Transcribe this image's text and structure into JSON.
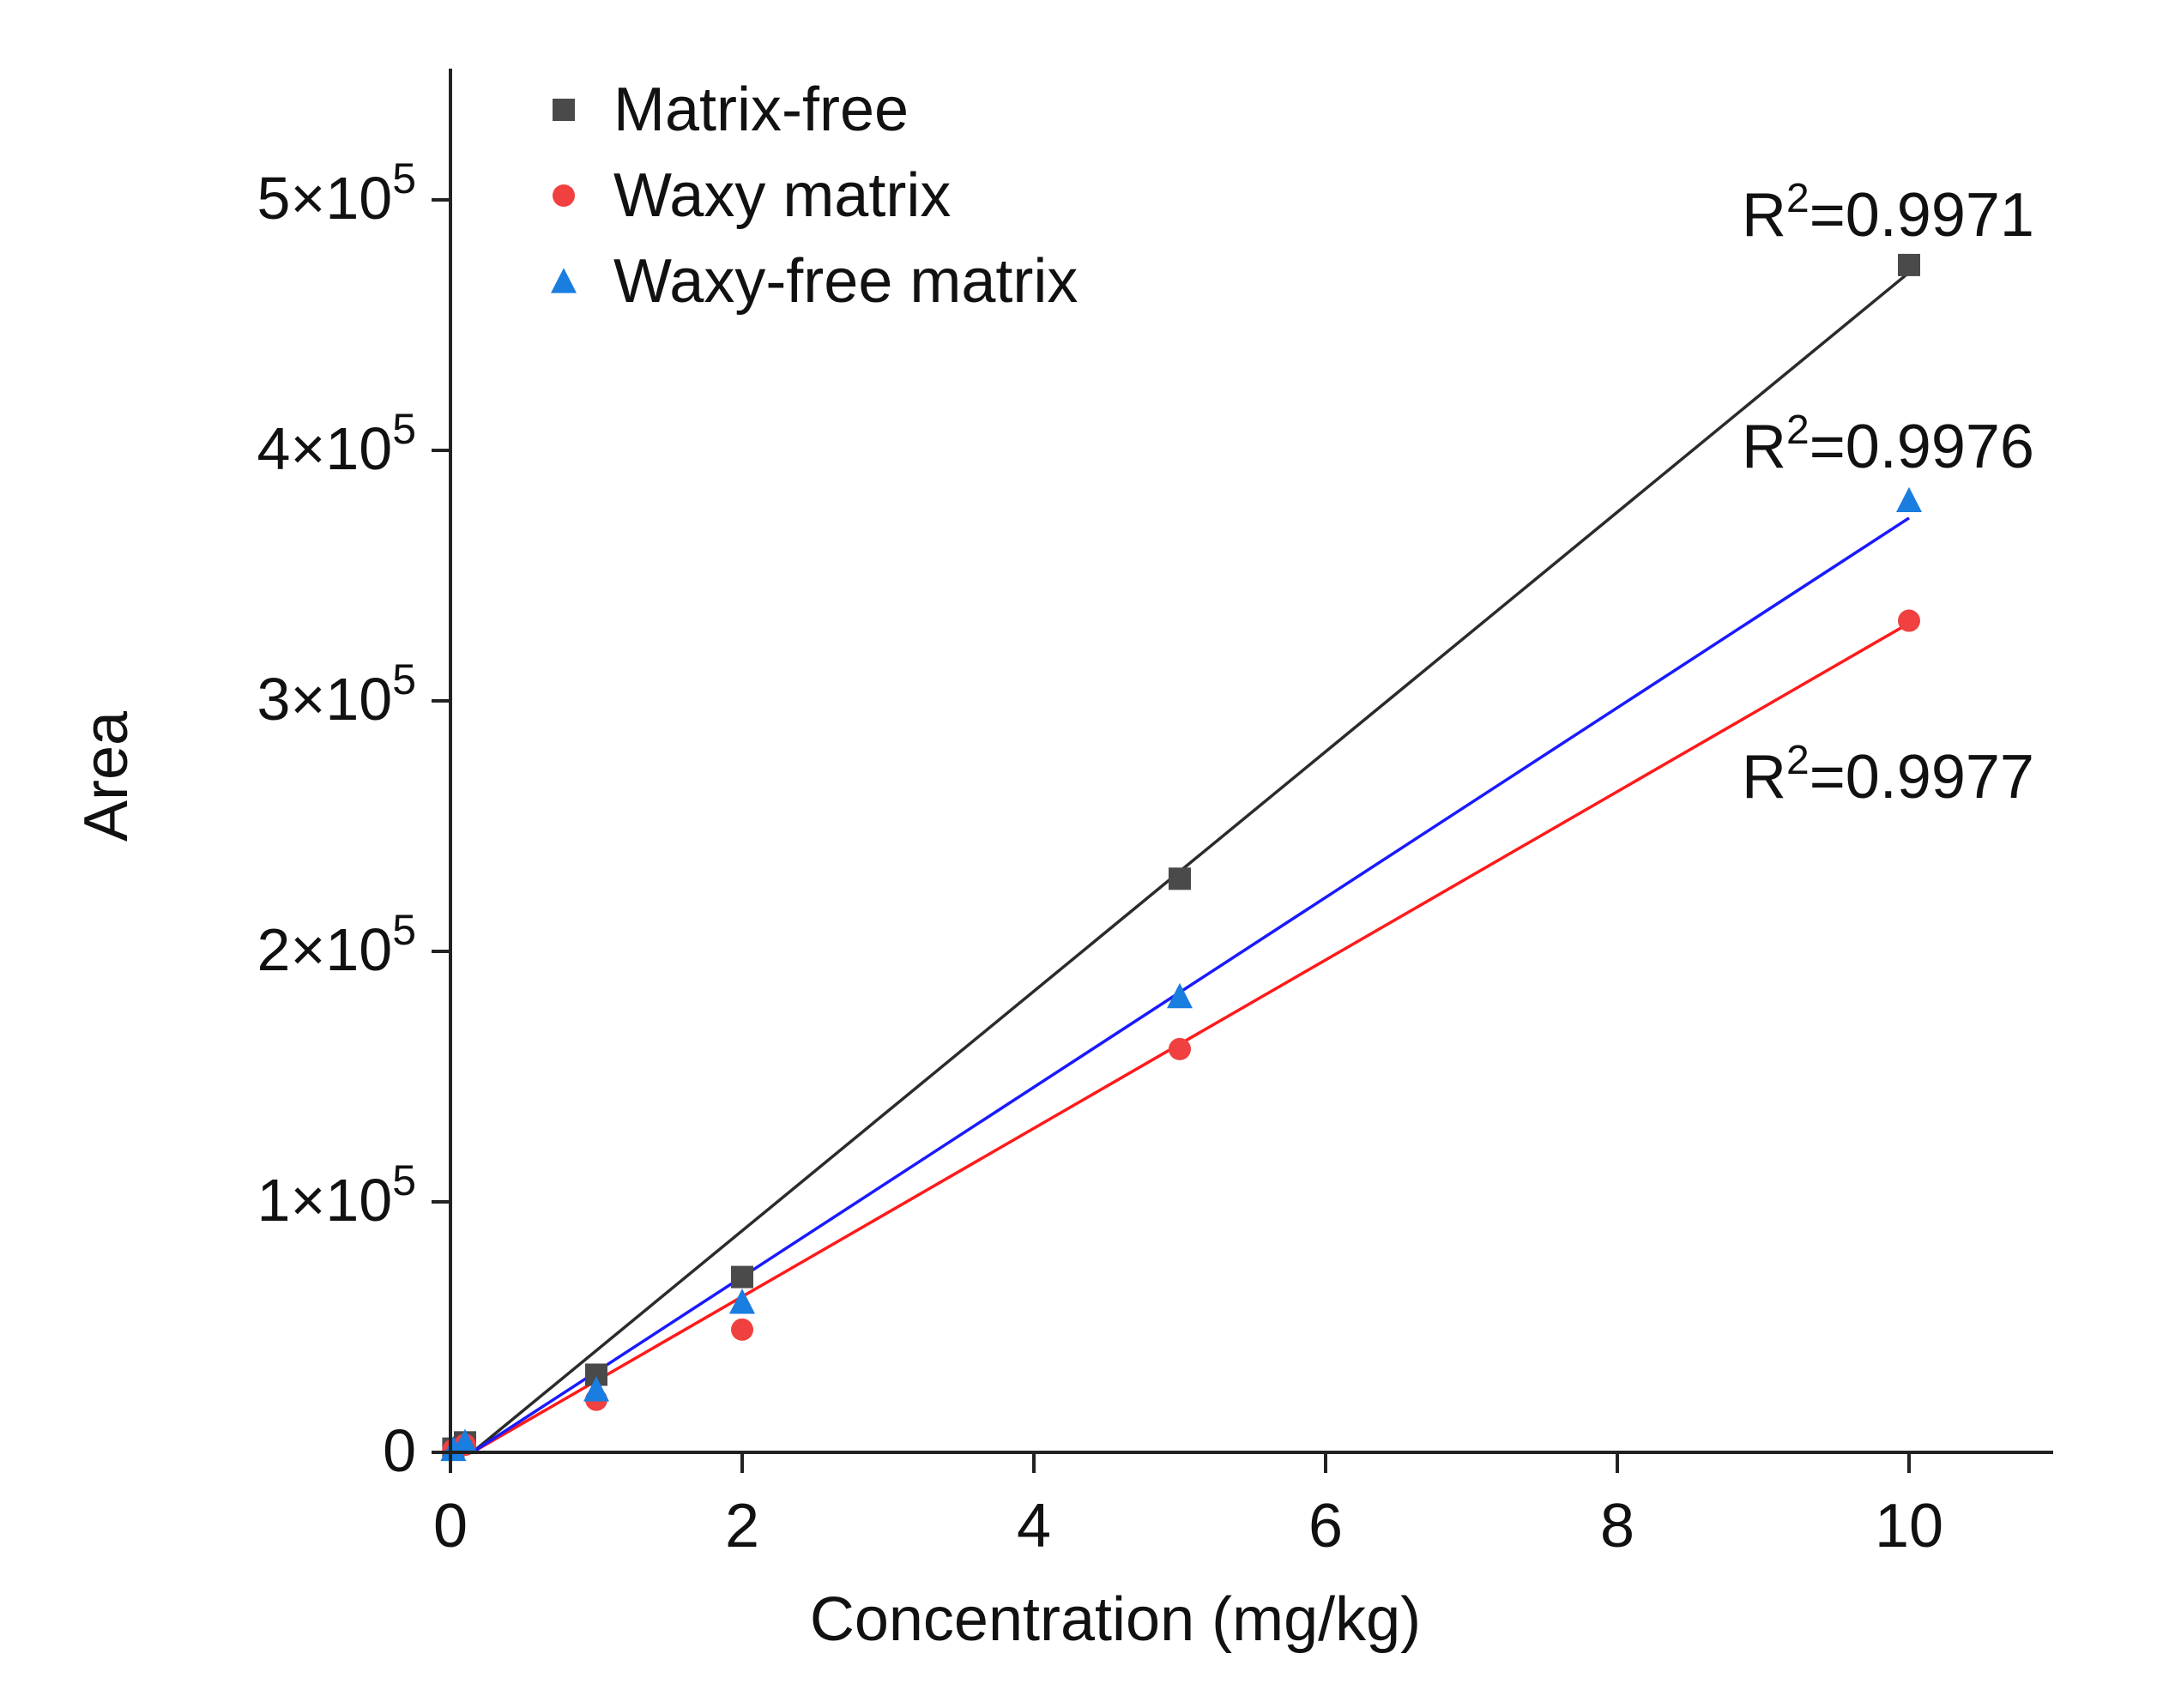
{
  "chart_data": {
    "type": "scatter",
    "title": "",
    "xlabel": "Concentration (mg/kg)",
    "ylabel": "Area",
    "xlim": [
      0,
      11
    ],
    "ylim": [
      0,
      550000
    ],
    "x_ticks": [
      0,
      2,
      4,
      6,
      8,
      10
    ],
    "x_tick_labels": [
      "0",
      "2",
      "4",
      "6",
      "8",
      "10"
    ],
    "y_ticks": [
      0,
      100000,
      200000,
      300000,
      400000,
      500000
    ],
    "y_tick_labels": [
      {
        "mantissa": "0",
        "exponent": ""
      },
      {
        "mantissa": "1×10",
        "exponent": "5"
      },
      {
        "mantissa": "2×10",
        "exponent": "5"
      },
      {
        "mantissa": "3×10",
        "exponent": "5"
      },
      {
        "mantissa": "4×10",
        "exponent": "5"
      },
      {
        "mantissa": "5×10",
        "exponent": "5"
      }
    ],
    "legend_position": "top-left",
    "series": [
      {
        "name": "Matrix-free",
        "marker": "square",
        "color": "#4a4a4a",
        "line_color": "#2b2b2b",
        "x": [
          0.02,
          0.1,
          1,
          2,
          5,
          10
        ],
        "y": [
          1500,
          4000,
          31000,
          70000,
          229000,
          474000
        ],
        "fit": {
          "x0": 0.15,
          "y0": 0,
          "x1": 10,
          "y1": 471000
        },
        "r2_prefix": "R",
        "r2_sup": "2",
        "r2_text": "=0.9971"
      },
      {
        "name": "Waxy matrix",
        "marker": "circle",
        "color": "#f04040",
        "line_color": "#ff1a1a",
        "x": [
          0.02,
          0.1,
          1,
          2,
          5,
          10
        ],
        "y": [
          1000,
          3000,
          21000,
          49000,
          161000,
          332000
        ],
        "fit": {
          "x0": 0.15,
          "y0": 0,
          "x1": 10,
          "y1": 331000
        },
        "r2_prefix": "R",
        "r2_sup": "2",
        "r2_text": "=0.9977"
      },
      {
        "name": "Waxy-free matrix",
        "marker": "triangle",
        "color": "#1a7de0",
        "line_color": "#1a1aff",
        "x": [
          0.02,
          0.1,
          1,
          2,
          5,
          10
        ],
        "y": [
          1200,
          4000,
          25000,
          60000,
          182000,
          380000
        ],
        "fit": {
          "x0": 0.15,
          "y0": 0,
          "x1": 10,
          "y1": 373000
        },
        "r2_prefix": "R",
        "r2_sup": "2",
        "r2_text": "=0.9976"
      }
    ]
  }
}
